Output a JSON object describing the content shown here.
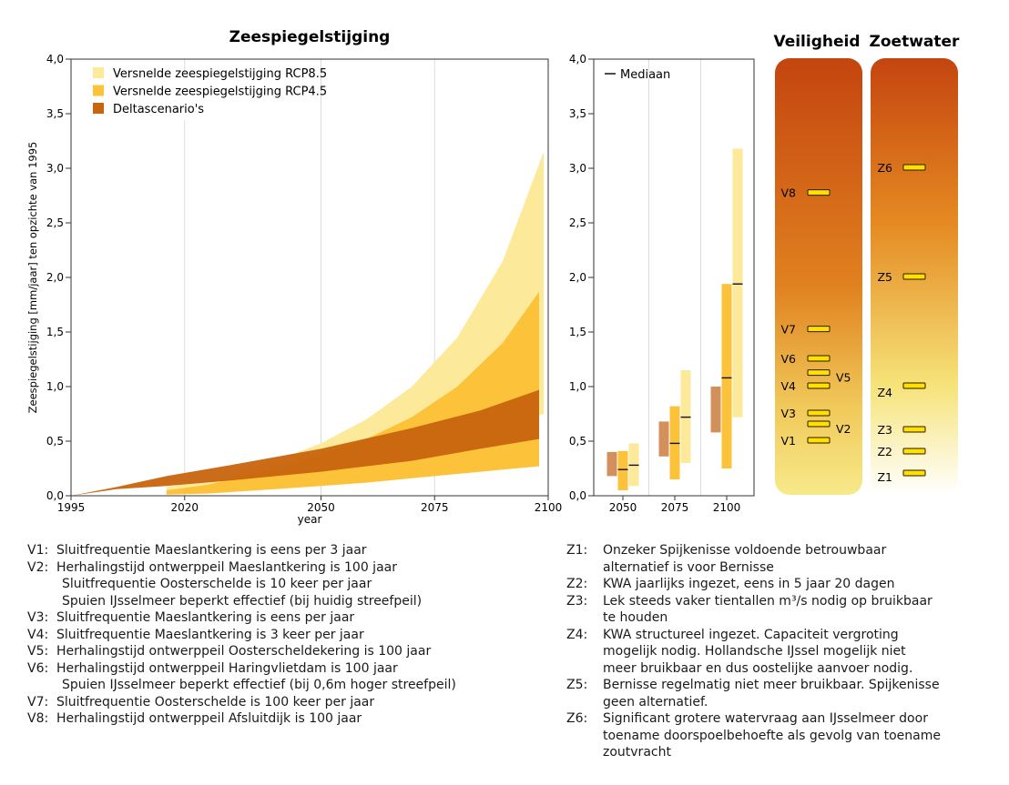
{
  "chart_data": [
    {
      "type": "area",
      "title": "Zeespiegelstijging",
      "xlabel": "year",
      "ylabel": "Zeespiegelstijging [mm/jaar] ten opzichte van 1995",
      "xlim": [
        1995,
        2100
      ],
      "ylim": [
        0,
        4.0
      ],
      "x_ticks": [
        "1995",
        "2020",
        "2050",
        "2075",
        "2100"
      ],
      "x_tick_values": [
        1995,
        2020,
        2050,
        2075,
        2100
      ],
      "y_ticks": [
        "0,0",
        "0,5",
        "1,0",
        "1,5",
        "2,0",
        "2,5",
        "3,0",
        "3,5",
        "4,0"
      ],
      "y_tick_values": [
        0,
        0.5,
        1.0,
        1.5,
        2.0,
        2.5,
        3.0,
        3.5,
        4.0
      ],
      "grid": true,
      "legend_position": "top-left",
      "series": [
        {
          "name": "Versnelde zeespiegelstijging RCP8.5",
          "color": "#fde99a",
          "x": [
            2016,
            2025,
            2040,
            2050,
            2060,
            2070,
            2080,
            2090,
            2099
          ],
          "upper": [
            0.08,
            0.14,
            0.32,
            0.48,
            0.7,
            1.0,
            1.45,
            2.15,
            3.15
          ],
          "lower": [
            0.02,
            0.04,
            0.12,
            0.19,
            0.27,
            0.37,
            0.49,
            0.62,
            0.75
          ]
        },
        {
          "name": "Versnelde zeespiegelstijging RCP4.5",
          "color": "#fbc23a",
          "x": [
            2016,
            2025,
            2040,
            2050,
            2060,
            2070,
            2080,
            2090,
            2098
          ],
          "upper": [
            0.05,
            0.1,
            0.25,
            0.38,
            0.52,
            0.72,
            1.0,
            1.4,
            1.87
          ],
          "lower": [
            0.01,
            0.02,
            0.06,
            0.09,
            0.12,
            0.16,
            0.2,
            0.24,
            0.27
          ]
        },
        {
          "name": "Deltascenario's",
          "color": "#c8640e",
          "x": [
            1995,
            2005,
            2016,
            2030,
            2050,
            2070,
            2085,
            2098
          ],
          "upper": [
            0.0,
            0.08,
            0.18,
            0.28,
            0.43,
            0.62,
            0.78,
            0.97
          ],
          "lower": [
            0.0,
            0.06,
            0.09,
            0.14,
            0.22,
            0.32,
            0.43,
            0.52
          ]
        }
      ]
    },
    {
      "type": "bar",
      "xlabel": "",
      "ylabel": "",
      "ylim": [
        0,
        4.0
      ],
      "categories": [
        "2050",
        "2075",
        "2100"
      ],
      "y_ticks": [
        "0,0",
        "0,5",
        "1,0",
        "1,5",
        "2,0",
        "2,5",
        "3,0",
        "3,5",
        "4,0"
      ],
      "legend": [
        "Mediaan"
      ],
      "legend_position": "top-left",
      "series": [
        {
          "name": "Deltascenario's",
          "color": "#d3905c",
          "ranges": [
            [
              0.18,
              0.4
            ],
            [
              0.36,
              0.68
            ],
            [
              0.58,
              1.0
            ]
          ],
          "median": [
            null,
            null,
            null
          ]
        },
        {
          "name": "Versnelde zeespiegelstijging RCP4.5",
          "color": "#fbc23a",
          "ranges": [
            [
              0.05,
              0.41
            ],
            [
              0.15,
              0.82
            ],
            [
              0.25,
              1.94
            ]
          ],
          "median": [
            0.24,
            0.48,
            1.08
          ]
        },
        {
          "name": "Versnelde zeespiegelstijging RCP8.5",
          "color": "#fde99a",
          "ranges": [
            [
              0.09,
              0.48
            ],
            [
              0.3,
              1.15
            ],
            [
              0.72,
              3.18
            ]
          ],
          "median": [
            0.28,
            0.72,
            1.94
          ]
        }
      ]
    },
    {
      "type": "table",
      "columns": [
        "Veiligheid",
        "Zoetwater"
      ],
      "scale_ylim": [
        0,
        4.0
      ],
      "gradient_colors": [
        "#c4450f",
        "#e58a22",
        "#f6e37a",
        "#ffffff"
      ],
      "marker_color": "#ffe000",
      "veiligheid": [
        {
          "label": "V1",
          "value": 0.5,
          "side": "left"
        },
        {
          "label": "V2",
          "value": 0.65,
          "side": "right"
        },
        {
          "label": "V3",
          "value": 0.75,
          "side": "left"
        },
        {
          "label": "V4",
          "value": 1.0,
          "side": "left"
        },
        {
          "label": "V5",
          "value": 1.12,
          "side": "right"
        },
        {
          "label": "V6",
          "value": 1.25,
          "side": "left"
        },
        {
          "label": "V7",
          "value": 1.52,
          "side": "left"
        },
        {
          "label": "V8",
          "value": 2.77,
          "side": "left"
        }
      ],
      "zoetwater": [
        {
          "label": "Z1",
          "value": 0.2
        },
        {
          "label": "Z2",
          "value": 0.4
        },
        {
          "label": "Z3",
          "value": 0.6
        },
        {
          "label": "Z4",
          "value": 1.0
        },
        {
          "label": "Z5",
          "value": 2.0
        },
        {
          "label": "Z6",
          "value": 3.0
        }
      ]
    }
  ],
  "legend_text": {
    "median": "Mediaan"
  },
  "descriptions_left": [
    {
      "code": "V1:",
      "lines": [
        "Sluitfrequentie Maeslantkering is eens per 3 jaar"
      ]
    },
    {
      "code": "V2:",
      "lines": [
        "Herhalingstijd ontwerppeil Maeslantkering is 100 jaar",
        "Sluitfrequentie Oosterschelde is 10 keer per jaar",
        "Spuien IJsselmeer beperkt effectief (bij huidig streefpeil)"
      ]
    },
    {
      "code": "V3:",
      "lines": [
        "Sluitfrequentie Maeslantkering is eens per jaar"
      ]
    },
    {
      "code": "V4:",
      "lines": [
        "Sluitfrequentie Maeslantkering is 3 keer per jaar"
      ]
    },
    {
      "code": "V5:",
      "lines": [
        "Herhalingstijd ontwerppeil Oosterscheldekering is 100 jaar"
      ]
    },
    {
      "code": "V6:",
      "lines": [
        "Herhalingstijd ontwerppeil Haringvlietdam is 100 jaar",
        "Spuien IJsselmeer beperkt effectief (bij 0,6m hoger streefpeil)"
      ]
    },
    {
      "code": "V7:",
      "lines": [
        "Sluitfrequentie Oosterschelde is 100 keer per jaar"
      ]
    },
    {
      "code": "V8:",
      "lines": [
        "Herhalingstijd ontwerppeil Afsluitdijk is 100 jaar"
      ]
    }
  ],
  "descriptions_right": [
    {
      "code": "Z1:",
      "lines": [
        "Onzeker Spijkenisse voldoende betrouwbaar",
        "alternatief is voor Bernisse"
      ]
    },
    {
      "code": "Z2:",
      "lines": [
        "KWA jaarlijks ingezet, eens in 5 jaar 20 dagen"
      ]
    },
    {
      "code": "Z3:",
      "lines": [
        "Lek steeds vaker tientallen m³/s nodig op bruikbaar",
        "te houden"
      ]
    },
    {
      "code": "Z4:",
      "lines": [
        "KWA structureel ingezet. Capaciteit vergroting",
        "mogelijk nodig. Hollandsche IJssel mogelijk niet",
        "meer bruikbaar en dus oostelijke aanvoer nodig."
      ]
    },
    {
      "code": "Z5:",
      "lines": [
        "Bernisse regelmatig niet meer bruikbaar. Spijkenisse",
        "geen alternatief."
      ]
    },
    {
      "code": "Z6:",
      "lines": [
        "Significant grotere watervraag aan IJsselmeer door",
        "toename doorspoelbehoefte als gevolg van toename",
        "zoutvracht"
      ]
    }
  ]
}
